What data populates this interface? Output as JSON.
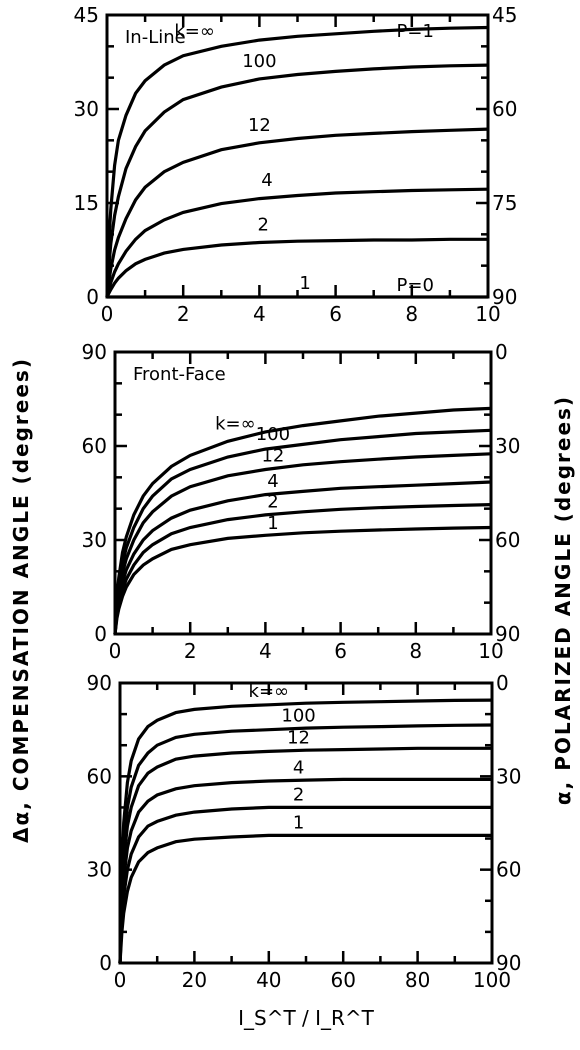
{
  "chart_data": [
    {
      "type": "line",
      "title": "In-Line",
      "x": [
        0,
        0.05,
        0.1,
        0.2,
        0.3,
        0.5,
        0.75,
        1,
        1.5,
        2,
        3,
        4,
        5,
        6,
        7,
        8,
        9,
        10
      ],
      "xlim": [
        0,
        10
      ],
      "ylim": [
        0,
        45
      ],
      "x_ticks": [
        "0",
        "2",
        "4",
        "6",
        "8",
        "10"
      ],
      "y_ticks": [
        "0",
        "15",
        "30",
        "45"
      ],
      "right_ticks": [
        "90",
        "75",
        "60",
        "45"
      ],
      "series": [
        {
          "name": "k=∞",
          "values": [
            0,
            9,
            14,
            21,
            25,
            29,
            32.5,
            34.5,
            37,
            38.5,
            40,
            41,
            41.6,
            42,
            42.4,
            42.7,
            42.9,
            43
          ]
        },
        {
          "name": "100",
          "values": [
            0,
            5,
            8.5,
            13,
            16,
            20.5,
            24,
            26.5,
            29.5,
            31.5,
            33.5,
            34.8,
            35.5,
            36,
            36.4,
            36.7,
            36.9,
            37
          ]
        },
        {
          "name": "12",
          "values": [
            0,
            2.5,
            4.5,
            7.5,
            9.5,
            12.5,
            15.5,
            17.5,
            20,
            21.5,
            23.5,
            24.6,
            25.3,
            25.8,
            26.1,
            26.4,
            26.6,
            26.8
          ]
        },
        {
          "name": "4",
          "values": [
            0,
            1.2,
            2.3,
            4,
            5.3,
            7.3,
            9.2,
            10.6,
            12.3,
            13.5,
            14.9,
            15.7,
            16.2,
            16.6,
            16.8,
            17,
            17.1,
            17.2
          ]
        },
        {
          "name": "2",
          "values": [
            0,
            0.6,
            1.2,
            2.2,
            3,
            4.2,
            5.3,
            6,
            7,
            7.6,
            8.3,
            8.7,
            8.9,
            9,
            9.1,
            9.1,
            9.2,
            9.2
          ]
        },
        {
          "name": "1",
          "values": [
            0,
            0,
            0,
            0,
            0,
            0,
            0,
            0,
            0,
            0,
            0,
            0,
            0,
            0,
            0,
            0,
            0,
            0
          ]
        }
      ],
      "annotations": [
        "P=1",
        "P=0"
      ]
    },
    {
      "type": "line",
      "title": "Front-Face",
      "x": [
        0,
        0.05,
        0.1,
        0.2,
        0.3,
        0.5,
        0.75,
        1,
        1.5,
        2,
        3,
        4,
        5,
        6,
        7,
        8,
        9,
        10
      ],
      "xlim": [
        0,
        10
      ],
      "ylim": [
        0,
        90
      ],
      "x_ticks": [
        "0",
        "2",
        "4",
        "6",
        "8",
        "10"
      ],
      "y_ticks": [
        "0",
        "30",
        "60",
        "90"
      ],
      "right_ticks": [
        "90",
        "60",
        "30",
        "0"
      ],
      "series": [
        {
          "name": "k=∞",
          "values": [
            0,
            12,
            18,
            26,
            31,
            38,
            44,
            48,
            53.5,
            57,
            61.5,
            64.5,
            66.5,
            68,
            69.5,
            70.5,
            71.5,
            72
          ]
        },
        {
          "name": "100",
          "values": [
            0,
            10,
            15.5,
            22.5,
            27.5,
            34,
            40,
            44,
            49.5,
            52.5,
            56.5,
            59,
            60.5,
            62,
            63,
            64,
            64.5,
            65
          ]
        },
        {
          "name": "12",
          "values": [
            0,
            8.5,
            13,
            19.5,
            24,
            30,
            35.5,
            39,
            44,
            47,
            50.5,
            52.5,
            54,
            55,
            55.8,
            56.5,
            57,
            57.5
          ]
        },
        {
          "name": "4",
          "values": [
            0,
            7,
            11,
            16.5,
            20.5,
            25.5,
            30,
            33,
            37,
            39.5,
            42.5,
            44.5,
            45.5,
            46.5,
            47,
            47.5,
            48,
            48.5
          ]
        },
        {
          "name": "2",
          "values": [
            0,
            6,
            9.5,
            14,
            17.5,
            22,
            26,
            28.5,
            32,
            34,
            36.5,
            38,
            39,
            39.8,
            40.3,
            40.7,
            41,
            41.3
          ]
        },
        {
          "name": "1",
          "values": [
            0,
            5,
            8,
            12,
            15,
            19,
            22,
            24,
            27,
            28.5,
            30.5,
            31.5,
            32.3,
            32.8,
            33.2,
            33.5,
            33.8,
            34
          ]
        }
      ]
    },
    {
      "type": "line",
      "xlabel": "I_S^T / I_R^T",
      "x": [
        0,
        0.5,
        1,
        2,
        3,
        5,
        7.5,
        10,
        15,
        20,
        30,
        40,
        50,
        60,
        70,
        80,
        90,
        100
      ],
      "xlim": [
        0,
        100
      ],
      "ylim": [
        0,
        90
      ],
      "x_ticks": [
        "0",
        "20",
        "40",
        "60",
        "80",
        "100"
      ],
      "y_ticks": [
        "0",
        "30",
        "60",
        "90"
      ],
      "right_ticks": [
        "90",
        "60",
        "30",
        "0"
      ],
      "series": [
        {
          "name": "k=∞",
          "values": [
            0,
            30,
            45,
            58,
            65,
            72,
            76,
            78,
            80.5,
            81.5,
            82.5,
            83,
            83.5,
            83.8,
            84,
            84.2,
            84.4,
            84.5
          ]
        },
        {
          "name": "100",
          "values": [
            0,
            25,
            38,
            50,
            56.5,
            63.5,
            67.5,
            70,
            72.5,
            73.5,
            74.5,
            75,
            75.5,
            75.8,
            76,
            76.2,
            76.4,
            76.5
          ]
        },
        {
          "name": "12",
          "values": [
            0,
            22,
            33,
            44,
            50,
            57,
            61,
            63,
            65.5,
            66.5,
            67.5,
            68,
            68.4,
            68.6,
            68.8,
            69,
            69,
            69
          ]
        },
        {
          "name": "4",
          "values": [
            0,
            18,
            27,
            37,
            42.5,
            48.5,
            52,
            54,
            56,
            57,
            58,
            58.5,
            58.8,
            59,
            59,
            59,
            59,
            59
          ]
        },
        {
          "name": "2",
          "values": [
            0,
            14,
            21.5,
            30,
            35,
            40.5,
            44,
            45.5,
            47.5,
            48.5,
            49.5,
            50,
            50,
            50,
            50,
            50,
            50,
            50
          ]
        },
        {
          "name": "1",
          "values": [
            0,
            10,
            16,
            23,
            27.5,
            32.5,
            35.5,
            37,
            39,
            39.8,
            40.5,
            41,
            41,
            41,
            41,
            41,
            41,
            41
          ]
        }
      ]
    }
  ],
  "axis_labels": {
    "left": "Δα, COMPENSATION ANGLE (degrees)",
    "right": "α, POLARIZED ANGLE (degrees)",
    "xlabel": "I_S^T / I_R^T"
  }
}
